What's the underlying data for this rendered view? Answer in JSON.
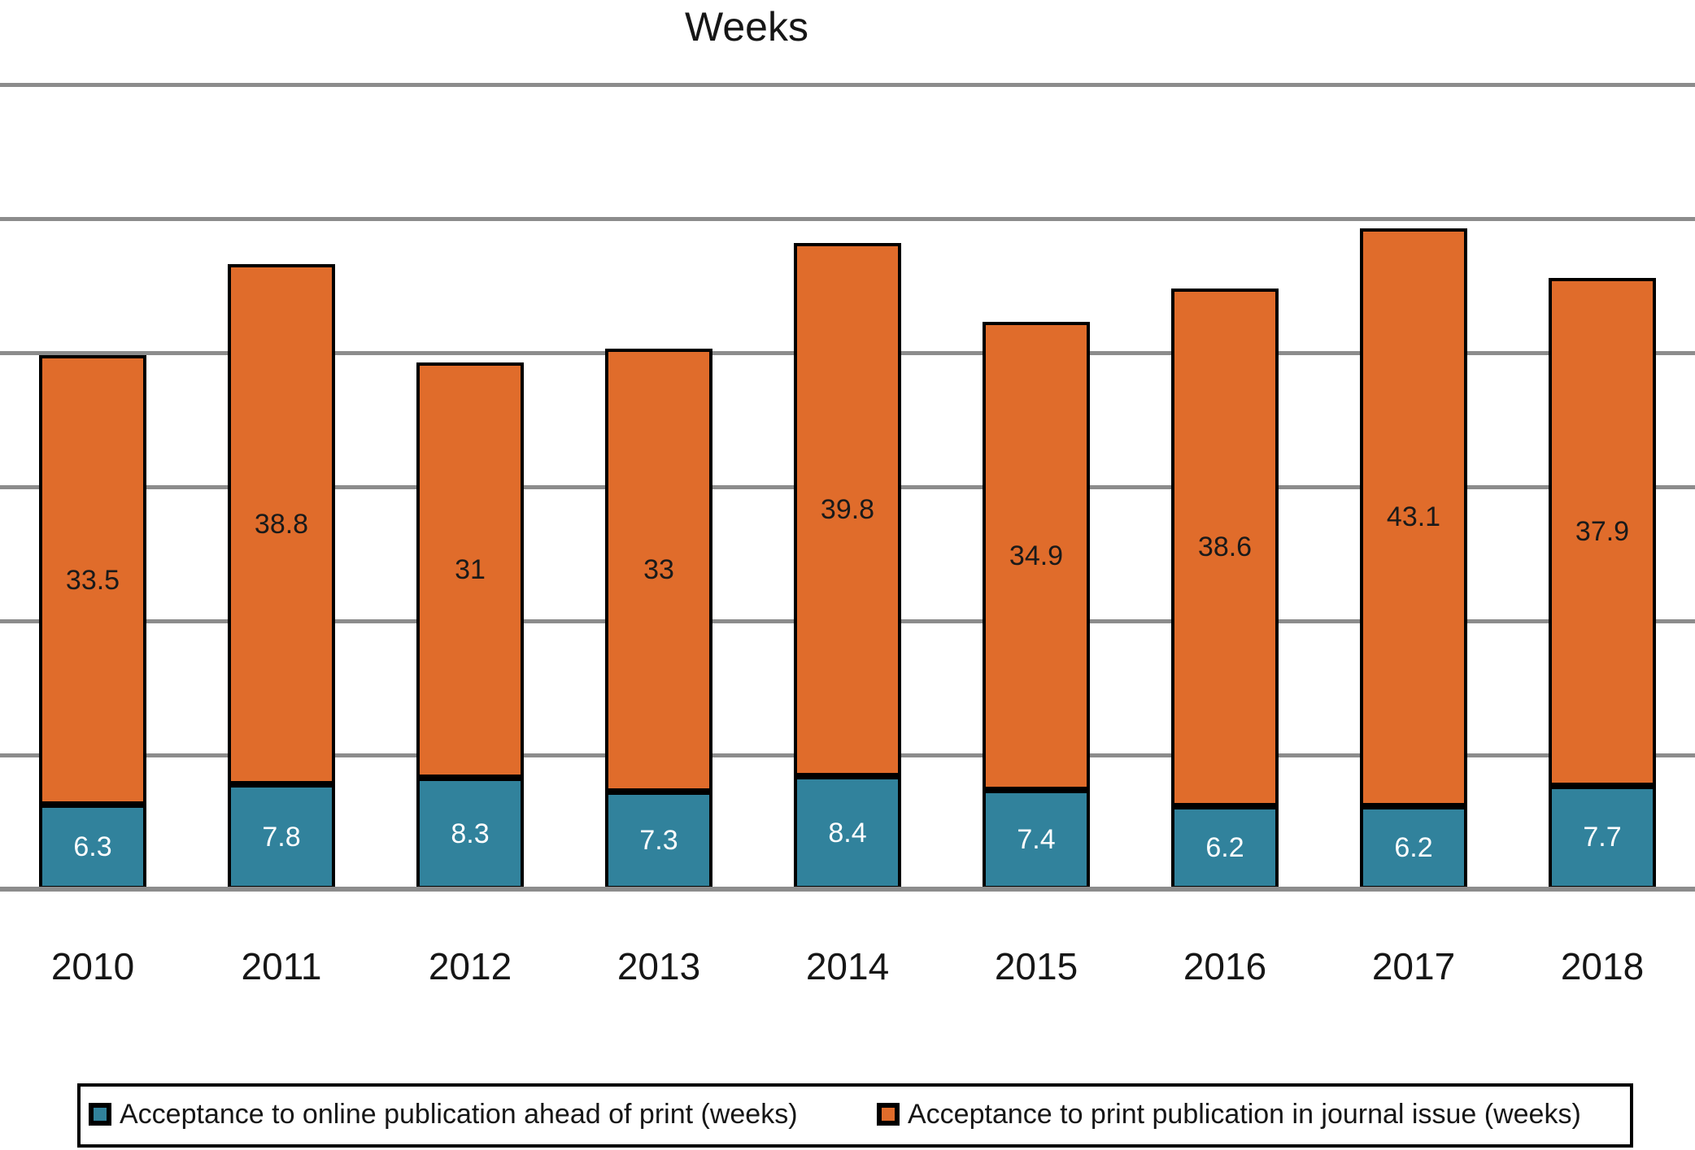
{
  "chart_data": {
    "type": "bar",
    "stacked": true,
    "title": "Weeks",
    "categories": [
      "2010",
      "2011",
      "2012",
      "2013",
      "2014",
      "2015",
      "2016",
      "2017",
      "2018"
    ],
    "series": [
      {
        "name": "Acceptance to online publication ahead of print (weeks)",
        "color": "#31829C",
        "label_color": "#FFFFFF",
        "values": [
          6.3,
          7.8,
          8.3,
          7.3,
          8.4,
          7.4,
          6.2,
          6.2,
          7.7
        ],
        "labels": [
          "6.3",
          "7.8",
          "8.3",
          "7.3",
          "8.4",
          "7.4",
          "6.2",
          "6.2",
          "7.7"
        ]
      },
      {
        "name": "Acceptance to print publication in journal issue (weeks)",
        "color": "#E06C2B",
        "label_color": "#1A1A1A",
        "values": [
          33.5,
          38.8,
          31,
          33,
          39.8,
          34.9,
          38.6,
          43.1,
          37.9
        ],
        "labels": [
          "33.5",
          "38.8",
          "31",
          "33",
          "39.8",
          "34.9",
          "38.6",
          "43.1",
          "37.9"
        ]
      }
    ],
    "xlabel": "",
    "ylabel": "",
    "ylim": [
      0,
      60
    ],
    "gridline_step": 10,
    "grid": true,
    "y_tick_labels_visible": false,
    "legend_position": "bottom",
    "bar_border_color": "#000000",
    "gridline_color": "#8C8C8C",
    "background_color": "#FFFFFF"
  }
}
